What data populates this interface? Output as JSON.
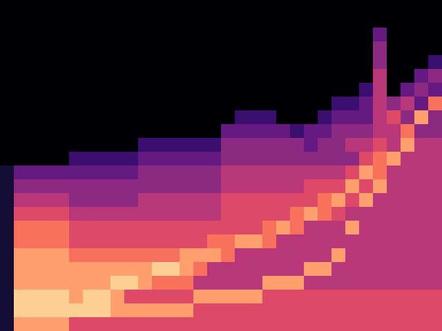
{
  "chart_data": {
    "type": "heatmap",
    "tick_labels": false,
    "zlim": [
      0,
      10
    ],
    "cells": [
      [
        0,
        0,
        0,
        0,
        0,
        0,
        0,
        0,
        0,
        0,
        0,
        0,
        0,
        0,
        0,
        0,
        0,
        0,
        0,
        0,
        0,
        0,
        0,
        0,
        0,
        0,
        0,
        0,
        0,
        0,
        0,
        0
      ],
      [
        0,
        0,
        0,
        0,
        0,
        0,
        0,
        0,
        0,
        0,
        0,
        0,
        0,
        0,
        0,
        0,
        0,
        0,
        0,
        0,
        0,
        0,
        0,
        0,
        0,
        0,
        0,
        0,
        0,
        0,
        0,
        0
      ],
      [
        0,
        0,
        0,
        0,
        0,
        0,
        0,
        0,
        0,
        0,
        0,
        0,
        0,
        0,
        0,
        0,
        0,
        0,
        0,
        0,
        0,
        0,
        0,
        0,
        0,
        0,
        0,
        3,
        0,
        0,
        0,
        0
      ],
      [
        0,
        0,
        0,
        0,
        0,
        0,
        0,
        0,
        0,
        0,
        0,
        0,
        0,
        0,
        0,
        0,
        0,
        0,
        0,
        0,
        0,
        0,
        0,
        0,
        0,
        0,
        0,
        4,
        0,
        0,
        0,
        0
      ],
      [
        0,
        0,
        0,
        0,
        0,
        0,
        0,
        0,
        0,
        0,
        0,
        0,
        0,
        0,
        0,
        0,
        0,
        0,
        0,
        0,
        0,
        0,
        0,
        0,
        0,
        0,
        0,
        4,
        0,
        0,
        0,
        2
      ],
      [
        0,
        0,
        0,
        0,
        0,
        0,
        0,
        0,
        0,
        0,
        0,
        0,
        0,
        0,
        0,
        0,
        0,
        0,
        0,
        0,
        0,
        0,
        0,
        0,
        0,
        0,
        0,
        5,
        0,
        0,
        3,
        4
      ],
      [
        0,
        0,
        0,
        0,
        0,
        0,
        0,
        0,
        0,
        0,
        0,
        0,
        0,
        0,
        0,
        0,
        0,
        0,
        0,
        0,
        0,
        0,
        0,
        0,
        0,
        0,
        2,
        5,
        0,
        3,
        4,
        3
      ],
      [
        0,
        0,
        0,
        0,
        0,
        0,
        0,
        0,
        0,
        0,
        0,
        0,
        0,
        0,
        0,
        0,
        0,
        0,
        0,
        0,
        0,
        0,
        0,
        0,
        2,
        2,
        3,
        5,
        4,
        5,
        3,
        7
      ],
      [
        0,
        0,
        0,
        0,
        0,
        0,
        0,
        0,
        0,
        0,
        0,
        0,
        0,
        0,
        0,
        0,
        0,
        2,
        2,
        2,
        0,
        0,
        0,
        2,
        3,
        3,
        3,
        5,
        6,
        4,
        8,
        4
      ],
      [
        0,
        0,
        0,
        0,
        0,
        0,
        0,
        0,
        0,
        0,
        0,
        0,
        0,
        0,
        0,
        0,
        3,
        3,
        3,
        3,
        3,
        2,
        3,
        3,
        4,
        4,
        4,
        5,
        5,
        7,
        4,
        4
      ],
      [
        0,
        0,
        0,
        0,
        0,
        0,
        0,
        0,
        0,
        0,
        2,
        2,
        2,
        2,
        2,
        2,
        4,
        4,
        4,
        4,
        4,
        4,
        3,
        4,
        4,
        5,
        5,
        6,
        5,
        8,
        5,
        5
      ],
      [
        0,
        0,
        0,
        0,
        0,
        2,
        2,
        2,
        2,
        2,
        3,
        3,
        3,
        3,
        3,
        3,
        4,
        4,
        4,
        4,
        4,
        4,
        4,
        4,
        4,
        4,
        6,
        7,
        8,
        5,
        5,
        5
      ],
      [
        1,
        3,
        3,
        3,
        3,
        3,
        3,
        3,
        3,
        3,
        4,
        4,
        4,
        4,
        4,
        4,
        5,
        5,
        5,
        5,
        5,
        5,
        5,
        5,
        5,
        6,
        8,
        7,
        5,
        5,
        5,
        5
      ],
      [
        1,
        4,
        4,
        4,
        4,
        4,
        4,
        4,
        4,
        4,
        4,
        4,
        4,
        4,
        4,
        4,
        5,
        5,
        5,
        5,
        5,
        5,
        6,
        6,
        6,
        8,
        6,
        8,
        5,
        5,
        5,
        5
      ],
      [
        1,
        5,
        5,
        5,
        5,
        4,
        4,
        4,
        4,
        4,
        5,
        5,
        5,
        5,
        5,
        5,
        6,
        6,
        6,
        6,
        6,
        6,
        6,
        7,
        8,
        6,
        8,
        5,
        5,
        5,
        5,
        5
      ],
      [
        1,
        6,
        6,
        6,
        6,
        5,
        5,
        5,
        5,
        5,
        5,
        5,
        5,
        5,
        5,
        5,
        6,
        6,
        6,
        6,
        6,
        7,
        8,
        7,
        6,
        5,
        5,
        5,
        5,
        5,
        5,
        5
      ],
      [
        1,
        7,
        7,
        7,
        7,
        6,
        6,
        6,
        6,
        6,
        6,
        6,
        6,
        6,
        6,
        6,
        6,
        6,
        6,
        7,
        8,
        7,
        5,
        5,
        5,
        8,
        5,
        5,
        5,
        5,
        5,
        5
      ],
      [
        1,
        7,
        7,
        7,
        7,
        6,
        6,
        6,
        6,
        6,
        6,
        6,
        6,
        6,
        6,
        7,
        7,
        8,
        8,
        7,
        5,
        5,
        5,
        5,
        5,
        5,
        5,
        5,
        5,
        5,
        5,
        5
      ],
      [
        1,
        8,
        8,
        8,
        8,
        7,
        7,
        7,
        7,
        7,
        7,
        7,
        7,
        8,
        8,
        8,
        7,
        5,
        5,
        5,
        5,
        5,
        5,
        5,
        8,
        5,
        5,
        5,
        5,
        5,
        5,
        5
      ],
      [
        1,
        8,
        8,
        8,
        8,
        8,
        8,
        8,
        8,
        8,
        8,
        9,
        9,
        8,
        7,
        5,
        5,
        5,
        5,
        5,
        5,
        5,
        8,
        8,
        5,
        5,
        5,
        5,
        5,
        5,
        5,
        5
      ],
      [
        1,
        8,
        8,
        8,
        8,
        8,
        8,
        8,
        9,
        9,
        8,
        7,
        7,
        7,
        5,
        5,
        5,
        5,
        5,
        8,
        8,
        8,
        5,
        5,
        5,
        5,
        5,
        5,
        5,
        5,
        5,
        5
      ],
      [
        1,
        9,
        9,
        9,
        9,
        8,
        9,
        9,
        8,
        6,
        6,
        6,
        6,
        6,
        8,
        8,
        8,
        8,
        8,
        6,
        6,
        6,
        6,
        6,
        6,
        6,
        6,
        6,
        6,
        6,
        6,
        6
      ],
      [
        1,
        9,
        9,
        9,
        9,
        9,
        9,
        9,
        8,
        8,
        8,
        8,
        8,
        8,
        6,
        6,
        6,
        6,
        6,
        6,
        6,
        6,
        6,
        6,
        6,
        6,
        6,
        6,
        6,
        6,
        6,
        6
      ],
      [
        1,
        8,
        8,
        8,
        8,
        6,
        6,
        6,
        6,
        6,
        6,
        6,
        6,
        6,
        6,
        6,
        6,
        6,
        6,
        6,
        6,
        6,
        6,
        6,
        6,
        6,
        6,
        6,
        6,
        6,
        6,
        6
      ]
    ]
  }
}
